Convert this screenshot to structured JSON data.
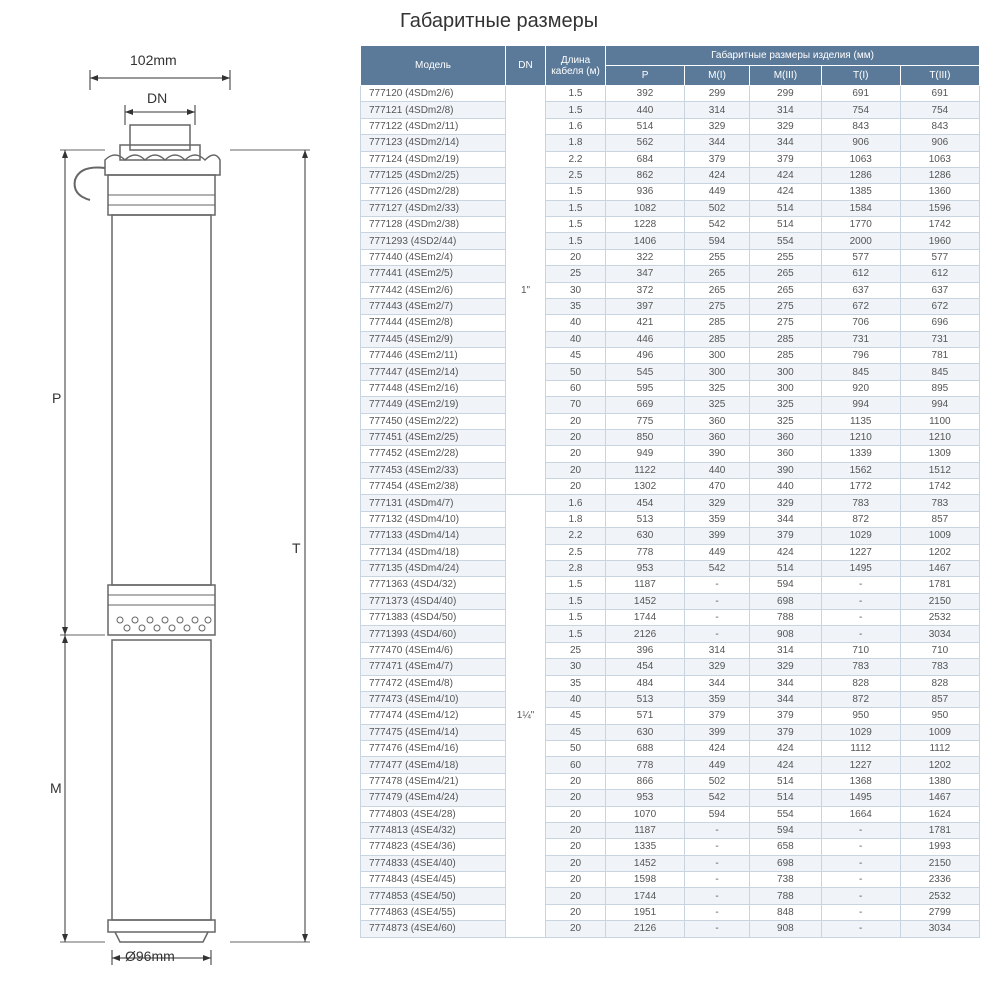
{
  "title": "Габаритные размеры",
  "diagram": {
    "top_dimension": "102mm",
    "dn_label": "DN",
    "bottom_dimension": "Ø96mm",
    "p_label": "P",
    "t_label": "T",
    "m_label": "M"
  },
  "table": {
    "header_bg": "#5b7a99",
    "header_fg": "#ffffff",
    "border_color": "#c8d4e0",
    "alt_row_bg": "#f0f4f8",
    "columns": {
      "model": "Модель",
      "dn": "DN",
      "cable": "Длина кабеля (м)",
      "dims_group": "Габаритные размеры изделия (мм)",
      "p": "P",
      "m1": "M(I)",
      "m3": "M(III)",
      "t1": "T(I)",
      "t3": "T(III)"
    },
    "groups": [
      {
        "dn": "1\"",
        "rows": [
          {
            "model": "777120 (4SDm2/6)",
            "cable": "1.5",
            "p": "392",
            "m1": "299",
            "m3": "299",
            "t1": "691",
            "t3": "691"
          },
          {
            "model": "777121 (4SDm2/8)",
            "cable": "1.5",
            "p": "440",
            "m1": "314",
            "m3": "314",
            "t1": "754",
            "t3": "754"
          },
          {
            "model": "777122 (4SDm2/11)",
            "cable": "1.6",
            "p": "514",
            "m1": "329",
            "m3": "329",
            "t1": "843",
            "t3": "843"
          },
          {
            "model": "777123 (4SDm2/14)",
            "cable": "1.8",
            "p": "562",
            "m1": "344",
            "m3": "344",
            "t1": "906",
            "t3": "906"
          },
          {
            "model": "777124 (4SDm2/19)",
            "cable": "2.2",
            "p": "684",
            "m1": "379",
            "m3": "379",
            "t1": "1063",
            "t3": "1063"
          },
          {
            "model": "777125 (4SDm2/25)",
            "cable": "2.5",
            "p": "862",
            "m1": "424",
            "m3": "424",
            "t1": "1286",
            "t3": "1286"
          },
          {
            "model": "777126 (4SDm2/28)",
            "cable": "1.5",
            "p": "936",
            "m1": "449",
            "m3": "424",
            "t1": "1385",
            "t3": "1360"
          },
          {
            "model": "777127 (4SDm2/33)",
            "cable": "1.5",
            "p": "1082",
            "m1": "502",
            "m3": "514",
            "t1": "1584",
            "t3": "1596"
          },
          {
            "model": "777128 (4SDm2/38)",
            "cable": "1.5",
            "p": "1228",
            "m1": "542",
            "m3": "514",
            "t1": "1770",
            "t3": "1742"
          },
          {
            "model": "7771293 (4SD2/44)",
            "cable": "1.5",
            "p": "1406",
            "m1": "594",
            "m3": "554",
            "t1": "2000",
            "t3": "1960"
          },
          {
            "model": "777440 (4SEm2/4)",
            "cable": "20",
            "p": "322",
            "m1": "255",
            "m3": "255",
            "t1": "577",
            "t3": "577"
          },
          {
            "model": "777441 (4SEm2/5)",
            "cable": "25",
            "p": "347",
            "m1": "265",
            "m3": "265",
            "t1": "612",
            "t3": "612"
          },
          {
            "model": "777442 (4SEm2/6)",
            "cable": "30",
            "p": "372",
            "m1": "265",
            "m3": "265",
            "t1": "637",
            "t3": "637"
          },
          {
            "model": "777443 (4SEm2/7)",
            "cable": "35",
            "p": "397",
            "m1": "275",
            "m3": "275",
            "t1": "672",
            "t3": "672"
          },
          {
            "model": "777444 (4SEm2/8)",
            "cable": "40",
            "p": "421",
            "m1": "285",
            "m3": "275",
            "t1": "706",
            "t3": "696"
          },
          {
            "model": "777445 (4SEm2/9)",
            "cable": "40",
            "p": "446",
            "m1": "285",
            "m3": "285",
            "t1": "731",
            "t3": "731"
          },
          {
            "model": "777446 (4SEm2/11)",
            "cable": "45",
            "p": "496",
            "m1": "300",
            "m3": "285",
            "t1": "796",
            "t3": "781"
          },
          {
            "model": "777447 (4SEm2/14)",
            "cable": "50",
            "p": "545",
            "m1": "300",
            "m3": "300",
            "t1": "845",
            "t3": "845"
          },
          {
            "model": "777448 (4SEm2/16)",
            "cable": "60",
            "p": "595",
            "m1": "325",
            "m3": "300",
            "t1": "920",
            "t3": "895"
          },
          {
            "model": "777449 (4SEm2/19)",
            "cable": "70",
            "p": "669",
            "m1": "325",
            "m3": "325",
            "t1": "994",
            "t3": "994"
          },
          {
            "model": "777450 (4SEm2/22)",
            "cable": "20",
            "p": "775",
            "m1": "360",
            "m3": "325",
            "t1": "1135",
            "t3": "1100"
          },
          {
            "model": "777451 (4SEm2/25)",
            "cable": "20",
            "p": "850",
            "m1": "360",
            "m3": "360",
            "t1": "1210",
            "t3": "1210"
          },
          {
            "model": "777452 (4SEm2/28)",
            "cable": "20",
            "p": "949",
            "m1": "390",
            "m3": "360",
            "t1": "1339",
            "t3": "1309"
          },
          {
            "model": "777453 (4SEm2/33)",
            "cable": "20",
            "p": "1122",
            "m1": "440",
            "m3": "390",
            "t1": "1562",
            "t3": "1512"
          },
          {
            "model": "777454 (4SEm2/38)",
            "cable": "20",
            "p": "1302",
            "m1": "470",
            "m3": "440",
            "t1": "1772",
            "t3": "1742"
          }
        ]
      },
      {
        "dn": "1¼\"",
        "rows": [
          {
            "model": "777131 (4SDm4/7)",
            "cable": "1.6",
            "p": "454",
            "m1": "329",
            "m3": "329",
            "t1": "783",
            "t3": "783"
          },
          {
            "model": "777132 (4SDm4/10)",
            "cable": "1.8",
            "p": "513",
            "m1": "359",
            "m3": "344",
            "t1": "872",
            "t3": "857"
          },
          {
            "model": "777133 (4SDm4/14)",
            "cable": "2.2",
            "p": "630",
            "m1": "399",
            "m3": "379",
            "t1": "1029",
            "t3": "1009"
          },
          {
            "model": "777134 (4SDm4/18)",
            "cable": "2.5",
            "p": "778",
            "m1": "449",
            "m3": "424",
            "t1": "1227",
            "t3": "1202"
          },
          {
            "model": "777135 (4SDm4/24)",
            "cable": "2.8",
            "p": "953",
            "m1": "542",
            "m3": "514",
            "t1": "1495",
            "t3": "1467"
          },
          {
            "model": "7771363 (4SD4/32)",
            "cable": "1.5",
            "p": "1187",
            "m1": "-",
            "m3": "594",
            "t1": "-",
            "t3": "1781"
          },
          {
            "model": "7771373 (4SD4/40)",
            "cable": "1.5",
            "p": "1452",
            "m1": "-",
            "m3": "698",
            "t1": "-",
            "t3": "2150"
          },
          {
            "model": "7771383 (4SD4/50)",
            "cable": "1.5",
            "p": "1744",
            "m1": "-",
            "m3": "788",
            "t1": "-",
            "t3": "2532"
          },
          {
            "model": "7771393 (4SD4/60)",
            "cable": "1.5",
            "p": "2126",
            "m1": "-",
            "m3": "908",
            "t1": "-",
            "t3": "3034"
          },
          {
            "model": "777470 (4SEm4/6)",
            "cable": "25",
            "p": "396",
            "m1": "314",
            "m3": "314",
            "t1": "710",
            "t3": "710"
          },
          {
            "model": "777471 (4SEm4/7)",
            "cable": "30",
            "p": "454",
            "m1": "329",
            "m3": "329",
            "t1": "783",
            "t3": "783"
          },
          {
            "model": "777472 (4SEm4/8)",
            "cable": "35",
            "p": "484",
            "m1": "344",
            "m3": "344",
            "t1": "828",
            "t3": "828"
          },
          {
            "model": "777473 (4SEm4/10)",
            "cable": "40",
            "p": "513",
            "m1": "359",
            "m3": "344",
            "t1": "872",
            "t3": "857"
          },
          {
            "model": "777474 (4SEm4/12)",
            "cable": "45",
            "p": "571",
            "m1": "379",
            "m3": "379",
            "t1": "950",
            "t3": "950"
          },
          {
            "model": "777475 (4SEm4/14)",
            "cable": "45",
            "p": "630",
            "m1": "399",
            "m3": "379",
            "t1": "1029",
            "t3": "1009"
          },
          {
            "model": "777476 (4SEm4/16)",
            "cable": "50",
            "p": "688",
            "m1": "424",
            "m3": "424",
            "t1": "1112",
            "t3": "1112"
          },
          {
            "model": "777477 (4SEm4/18)",
            "cable": "60",
            "p": "778",
            "m1": "449",
            "m3": "424",
            "t1": "1227",
            "t3": "1202"
          },
          {
            "model": "777478 (4SEm4/21)",
            "cable": "20",
            "p": "866",
            "m1": "502",
            "m3": "514",
            "t1": "1368",
            "t3": "1380"
          },
          {
            "model": "777479 (4SEm4/24)",
            "cable": "20",
            "p": "953",
            "m1": "542",
            "m3": "514",
            "t1": "1495",
            "t3": "1467"
          },
          {
            "model": "7774803 (4SE4/28)",
            "cable": "20",
            "p": "1070",
            "m1": "594",
            "m3": "554",
            "t1": "1664",
            "t3": "1624"
          },
          {
            "model": "7774813 (4SE4/32)",
            "cable": "20",
            "p": "1187",
            "m1": "-",
            "m3": "594",
            "t1": "-",
            "t3": "1781"
          },
          {
            "model": "7774823 (4SE4/36)",
            "cable": "20",
            "p": "1335",
            "m1": "-",
            "m3": "658",
            "t1": "-",
            "t3": "1993"
          },
          {
            "model": "7774833 (4SE4/40)",
            "cable": "20",
            "p": "1452",
            "m1": "-",
            "m3": "698",
            "t1": "-",
            "t3": "2150"
          },
          {
            "model": "7774843 (4SE4/45)",
            "cable": "20",
            "p": "1598",
            "m1": "-",
            "m3": "738",
            "t1": "-",
            "t3": "2336"
          },
          {
            "model": "7774853 (4SE4/50)",
            "cable": "20",
            "p": "1744",
            "m1": "-",
            "m3": "788",
            "t1": "-",
            "t3": "2532"
          },
          {
            "model": "7774863 (4SE4/55)",
            "cable": "20",
            "p": "1951",
            "m1": "-",
            "m3": "848",
            "t1": "-",
            "t3": "2799"
          },
          {
            "model": "7774873 (4SE4/60)",
            "cable": "20",
            "p": "2126",
            "m1": "-",
            "m3": "908",
            "t1": "-",
            "t3": "3034"
          }
        ]
      }
    ]
  }
}
